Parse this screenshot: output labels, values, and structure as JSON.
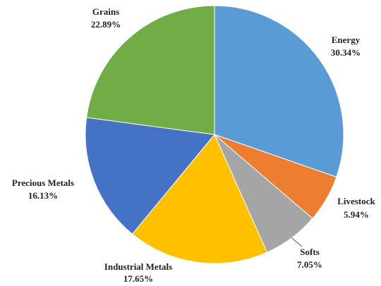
{
  "chart_data": {
    "type": "pie",
    "title": "",
    "slices": [
      {
        "label": "Energy",
        "value": 30.34,
        "value_label": "30.34%",
        "color": "#5B9BD5"
      },
      {
        "label": "Livestock",
        "value": 5.94,
        "value_label": "5.94%",
        "color": "#ED7D31"
      },
      {
        "label": "Softs",
        "value": 7.05,
        "value_label": "7.05%",
        "color": "#A5A5A5"
      },
      {
        "label": "Industrial Metals",
        "value": 17.65,
        "value_label": "17.65%",
        "color": "#FFC000"
      },
      {
        "label": "Precious Metals",
        "value": 16.13,
        "value_label": "16.13%",
        "color": "#4472C4"
      },
      {
        "label": "Grains",
        "value": 22.89,
        "value_label": "22.89%",
        "color": "#70AD47"
      }
    ],
    "start_angle": "12 o'clock",
    "direction": "clockwise",
    "legend": "none",
    "labels": "outside"
  }
}
